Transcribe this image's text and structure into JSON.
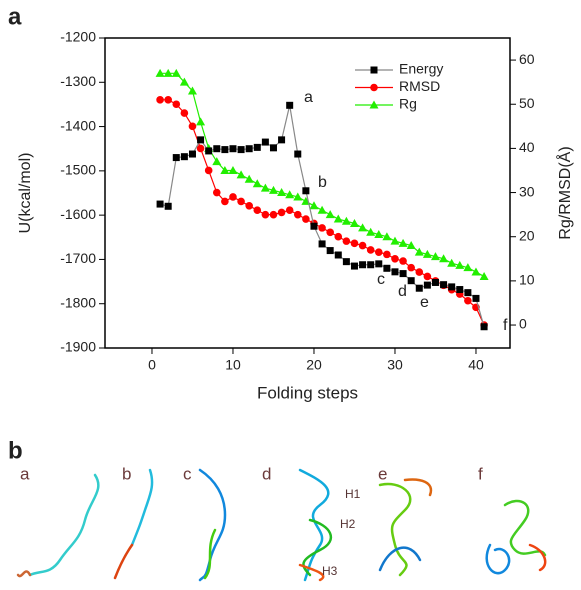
{
  "chart_data": {
    "type": "line",
    "panel_label": "a",
    "x_label": "Folding steps",
    "y_label": "U(kcal/mol)",
    "y2_label": "Rg/RMSD(Å)",
    "x": [
      1,
      2,
      3,
      4,
      5,
      6,
      7,
      8,
      9,
      10,
      11,
      12,
      13,
      14,
      15,
      16,
      17,
      18,
      19,
      20,
      21,
      22,
      23,
      24,
      25,
      26,
      27,
      28,
      29,
      30,
      31,
      32,
      33,
      34,
      35,
      36,
      37,
      38,
      39,
      40,
      41
    ],
    "series": [
      {
        "name": "Energy",
        "color": "#000000",
        "line_color": "#888888",
        "marker": "square",
        "axis": "y",
        "values": [
          -1575,
          -1580,
          -1470,
          -1468,
          -1462,
          -1430,
          -1455,
          -1450,
          -1452,
          -1450,
          -1452,
          -1450,
          -1447,
          -1435,
          -1448,
          -1430,
          -1352,
          -1462,
          -1545,
          -1625,
          -1665,
          -1680,
          -1690,
          -1705,
          -1715,
          -1712,
          -1712,
          -1710,
          -1720,
          -1728,
          -1732,
          -1748,
          -1765,
          -1758,
          -1752,
          -1757,
          -1762,
          -1768,
          -1775,
          -1788,
          -1852
        ]
      },
      {
        "name": "RMSD",
        "color": "#ff0000",
        "line_color": "#ff0000",
        "marker": "circle",
        "axis": "y2",
        "values": [
          51,
          51,
          50,
          48,
          45,
          40,
          35,
          30,
          28,
          29,
          28,
          27,
          26,
          25,
          25,
          25.5,
          26,
          25,
          24,
          23,
          22,
          21,
          20,
          19,
          18.5,
          18,
          17,
          16.5,
          16,
          15,
          14.5,
          13,
          12,
          11,
          10,
          9,
          8,
          7,
          5.5,
          4,
          0
        ]
      },
      {
        "name": "Rg",
        "color": "#22ee00",
        "line_color": "#22ee00",
        "marker": "triangle",
        "axis": "y2",
        "values": [
          57,
          57,
          57,
          55,
          53,
          46,
          40,
          37,
          35,
          35,
          34,
          33,
          32,
          31,
          30.5,
          30,
          29.5,
          29,
          28,
          27,
          26,
          25,
          24,
          23.5,
          23,
          22,
          21,
          20.5,
          20,
          19,
          18.5,
          18,
          16.5,
          16,
          15.5,
          15,
          14,
          13.5,
          13,
          12,
          11
        ]
      }
    ],
    "annotations": [
      "a",
      "b",
      "c",
      "d",
      "e",
      "f"
    ],
    "xlim": [
      -5.8,
      44.2
    ],
    "xticks": [
      0,
      10,
      20,
      30,
      40
    ],
    "ylim": [
      -1200,
      -1900
    ],
    "yticks": [
      -1200,
      -1300,
      -1400,
      -1500,
      -1600,
      -1700,
      -1800,
      -1900
    ],
    "y2lim": [
      65,
      -5.2
    ],
    "y2ticks": [
      0,
      10,
      20,
      30,
      40,
      50,
      60
    ],
    "legend": "upper center"
  },
  "panel_b": {
    "label": "b",
    "structures": [
      "a",
      "b",
      "c",
      "d",
      "e",
      "f"
    ],
    "helix_labels": [
      "H1",
      "H2",
      "H3"
    ]
  }
}
